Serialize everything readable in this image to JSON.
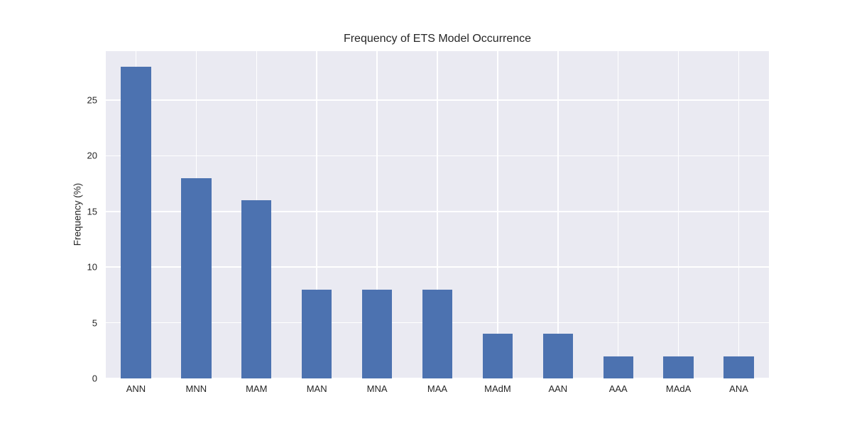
{
  "chart_data": {
    "type": "bar",
    "title": "Frequency of ETS Model Occurrence",
    "xlabel": "",
    "ylabel": "Frequency (%)",
    "categories": [
      "ANN",
      "MNN",
      "MAM",
      "MAN",
      "MNA",
      "MAA",
      "MAdM",
      "AAN",
      "AAA",
      "MAdA",
      "ANA"
    ],
    "values": [
      28,
      18,
      16,
      8,
      8,
      8,
      4,
      4,
      2,
      2,
      2
    ],
    "yticks": [
      0,
      5,
      10,
      15,
      20,
      25
    ],
    "ylim": [
      0,
      29.4
    ],
    "grid": "on",
    "legend": "none",
    "bar_color": "#4c72b0",
    "plot_bg_color": "#eaeaf2",
    "grid_color": "#ffffff",
    "text_color": "#262626"
  }
}
